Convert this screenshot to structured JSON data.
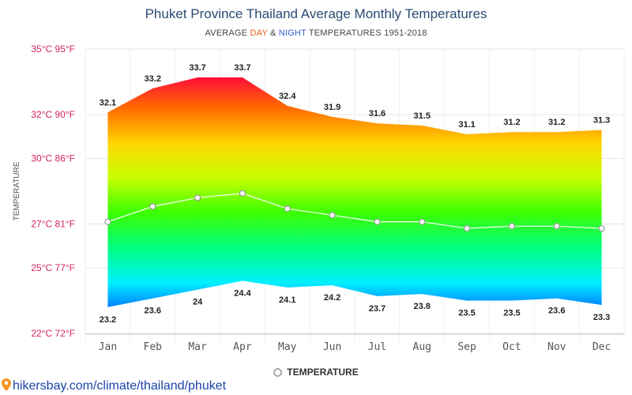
{
  "chart_data": {
    "type": "area",
    "title": "Phuket Province Thailand Average Monthly Temperatures",
    "subtitle": {
      "prefix": "AVERAGE ",
      "day_word": "DAY",
      "middle": " & ",
      "night_word": "NIGHT",
      "suffix": " TEMPERATURES 1951-2018"
    },
    "ylabel": "TEMPERATURE",
    "ylim": [
      22,
      35
    ],
    "yticks": [
      {
        "value": 22,
        "label": "22°C 72°F"
      },
      {
        "value": 25,
        "label": "25°C 77°F"
      },
      {
        "value": 27,
        "label": "27°C 81°F"
      },
      {
        "value": 30,
        "label": "30°C 86°F"
      },
      {
        "value": 32,
        "label": "32°C 90°F"
      },
      {
        "value": 35,
        "label": "35°C 95°F"
      }
    ],
    "categories": [
      "Jan",
      "Feb",
      "Mar",
      "Apr",
      "May",
      "Jun",
      "Jul",
      "Aug",
      "Sep",
      "Oct",
      "Nov",
      "Dec"
    ],
    "series": [
      {
        "name": "DAY",
        "values": [
          32.1,
          33.2,
          33.7,
          33.7,
          32.4,
          31.9,
          31.6,
          31.5,
          31.1,
          31.2,
          31.2,
          31.3
        ]
      },
      {
        "name": "NIGHT",
        "values": [
          23.2,
          23.6,
          24,
          24.4,
          24.1,
          24.2,
          23.7,
          23.8,
          23.5,
          23.5,
          23.6,
          23.3
        ]
      },
      {
        "name": "TEMPERATURE",
        "values": [
          27.1,
          27.8,
          28.2,
          28.4,
          27.7,
          27.4,
          27.1,
          27.1,
          26.8,
          26.9,
          26.9,
          26.8
        ]
      }
    ],
    "legend": {
      "label": "TEMPERATURE",
      "position": "bottom-center"
    },
    "colors": {
      "tick_label": "#d4245a",
      "gradient": [
        "#ff0040",
        "#ff6a00",
        "#ffd400",
        "#c8ff00",
        "#3cff00",
        "#00ff80",
        "#00f0ff",
        "#0050ff"
      ],
      "mean_line": "#ffffff"
    },
    "grid": true
  },
  "credit": "hikersbay.com/climate/thailand/phuket"
}
